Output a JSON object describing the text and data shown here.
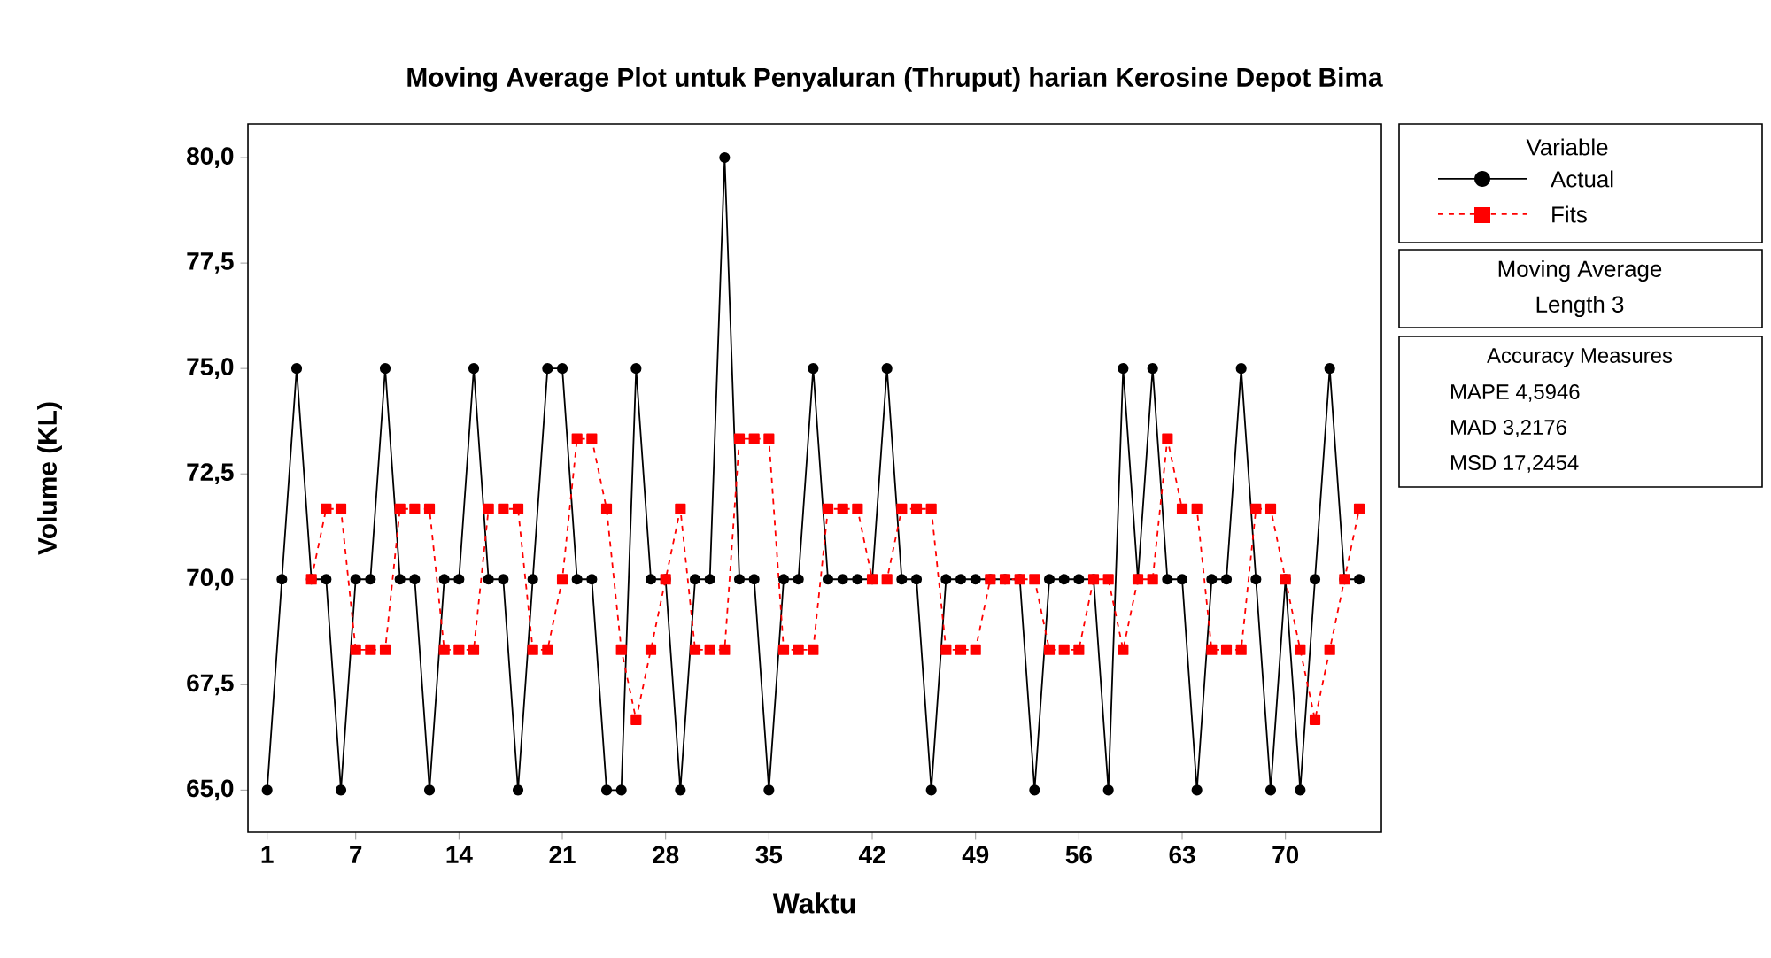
{
  "chart_data": {
    "type": "line",
    "title": "Moving Average Plot untuk Penyaluran (Thruput) harian Kerosine Depot Bima",
    "xlabel": "Waktu",
    "ylabel": "Volume (KL)",
    "legend_title": "Variable",
    "x": [
      1,
      2,
      3,
      4,
      5,
      6,
      7,
      8,
      9,
      10,
      11,
      12,
      13,
      14,
      15,
      16,
      17,
      18,
      19,
      20,
      21,
      22,
      23,
      24,
      25,
      26,
      27,
      28,
      29,
      30,
      31,
      32,
      33,
      34,
      35,
      36,
      37,
      38,
      39,
      40,
      41,
      42,
      43,
      44,
      45,
      46,
      47,
      48,
      49,
      50,
      51,
      52,
      53,
      54,
      55,
      56,
      57,
      58,
      59,
      60,
      61,
      62,
      63,
      64,
      65,
      66,
      67,
      68,
      69,
      70,
      71,
      72,
      73,
      74,
      75
    ],
    "series": [
      {
        "name": "Actual",
        "color": "#000000",
        "marker": "circle",
        "line_style": "solid",
        "values": [
          65,
          70,
          75,
          70,
          70,
          65,
          70,
          70,
          75,
          70,
          70,
          65,
          70,
          70,
          75,
          70,
          70,
          65,
          70,
          75,
          75,
          70,
          70,
          65,
          65,
          75,
          70,
          70,
          65,
          70,
          70,
          80,
          70,
          70,
          65,
          70,
          70,
          75,
          70,
          70,
          70,
          70,
          75,
          70,
          70,
          65,
          70,
          70,
          70,
          70,
          70,
          70,
          65,
          70,
          70,
          70,
          70,
          65,
          75,
          70,
          75,
          70,
          70,
          65,
          70,
          70,
          75,
          70,
          65,
          70,
          65,
          70,
          75,
          70,
          70
        ]
      },
      {
        "name": "Fits",
        "color": "#ff0000",
        "marker": "square",
        "line_style": "dashed",
        "values": [
          null,
          null,
          null,
          70,
          71.67,
          71.67,
          68.33,
          68.33,
          68.33,
          71.67,
          71.67,
          71.67,
          68.33,
          68.33,
          68.33,
          71.67,
          71.67,
          71.67,
          68.33,
          68.33,
          70,
          73.33,
          73.33,
          71.67,
          68.33,
          66.67,
          68.33,
          70,
          71.67,
          68.33,
          68.33,
          68.33,
          73.33,
          73.33,
          73.33,
          68.33,
          68.33,
          68.33,
          71.67,
          71.67,
          71.67,
          70,
          70,
          71.67,
          71.67,
          71.67,
          68.33,
          68.33,
          68.33,
          70,
          70,
          70,
          70,
          68.33,
          68.33,
          68.33,
          70,
          70,
          68.33,
          70,
          70,
          73.33,
          71.67,
          71.67,
          68.33,
          68.33,
          68.33,
          71.67,
          71.67,
          70,
          68.33,
          66.67,
          68.33,
          70,
          71.67
        ]
      }
    ],
    "xlim": [
      -0.3,
      76.5
    ],
    "ylim": [
      64,
      80.8
    ],
    "xticks": [
      1,
      7,
      14,
      21,
      28,
      35,
      42,
      49,
      56,
      63,
      70
    ],
    "yticks": [
      {
        "value": 65,
        "label": "65,0"
      },
      {
        "value": 67.5,
        "label": "67,5"
      },
      {
        "value": 70,
        "label": "70,0"
      },
      {
        "value": 72.5,
        "label": "72,5"
      },
      {
        "value": 75,
        "label": "75,0"
      },
      {
        "value": 77.5,
        "label": "77,5"
      },
      {
        "value": 80,
        "label": "80,0"
      }
    ],
    "grid": false,
    "legend": "right",
    "annotations": [
      "Moving Average",
      "Length 3",
      "Accuracy Measures",
      "MAPE 4,5946",
      "MAD 3,2176",
      "MSD 17,2454"
    ]
  }
}
